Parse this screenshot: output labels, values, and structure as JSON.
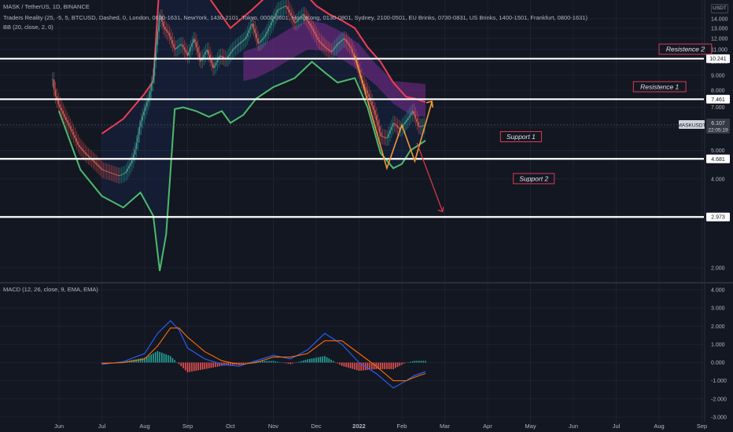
{
  "legend": {
    "symbol_line": "MASK / TetherUS, 1D, BINANCE",
    "indicator_line": "Traders Reality (25, -5, 5, BTCUSD, Dashed, 0, London, 0800-1631, NewYork, 1430-2101, Tokyo, 0000-0601, HongKong, 0130-0801, Sydney, 2100-0501, EU Brinks, 0730-0831, US Brinks, 1400-1501, Frankfurt, 0800-1631)",
    "bb_line": "BB (20, close, 2, 0)",
    "macd_line": "MACD (12, 26, close, 9, EMA, EMA)"
  },
  "currency_badge": "USDT",
  "colors": {
    "background": "#131722",
    "upper_band": "#ef3d53",
    "lower_band": "#4cbb6c",
    "cloud": "#7b2c8f",
    "level_line": "#ffffff",
    "annotation_box": "#d93c52",
    "arrow_orange": "#f29b38",
    "arrow_red": "#e5394f",
    "macd_line": "#2962ff",
    "signal_line": "#ff6d00",
    "hist_up": "#26a69a",
    "hist_down": "#ef5350"
  },
  "chart_data": [
    {
      "type": "line",
      "name": "price",
      "scale": "log",
      "x_ticks": [
        "Jun",
        "Jul",
        "Aug",
        "Sep",
        "Oct",
        "Nov",
        "Dec",
        "2022",
        "Feb",
        "Mar",
        "Apr",
        "May",
        "Jun",
        "Jul",
        "Aug",
        "Sep"
      ],
      "y_ticks": [
        "14.000",
        "13.000",
        "12.000",
        "11.000",
        "10.000",
        "9.000",
        "8.000",
        "7.000",
        "6.000",
        "5.000",
        "4.000",
        "3.000",
        "2.000"
      ],
      "ylim": [
        1.8,
        16
      ],
      "levels": [
        {
          "value": 10.241,
          "label": "10.241"
        },
        {
          "value": 7.461,
          "label": "7.461"
        },
        {
          "value": 4.681,
          "label": "4.681"
        },
        {
          "value": 2.973,
          "label": "2.973"
        }
      ],
      "annotations": [
        {
          "text": "Resistence 2",
          "t": 14.0,
          "y": 11.0
        },
        {
          "text": "Resistence 1",
          "t": 13.4,
          "y": 8.2
        },
        {
          "text": "Support 1",
          "t": 10.3,
          "y": 5.55
        },
        {
          "text": "Support 2",
          "t": 10.6,
          "y": 4.0
        }
      ],
      "last_price": {
        "symbol": "MASKUSDT",
        "value": "6.107",
        "countdown": "22:05:19"
      },
      "close": {
        "t": [
          -0.15,
          -0.1,
          0.0,
          0.15,
          0.3,
          0.45,
          0.6,
          0.8,
          1.0,
          1.2,
          1.4,
          1.55,
          1.7,
          1.8,
          1.9,
          2.0,
          2.1,
          2.2,
          2.35,
          2.45,
          2.55,
          2.7,
          2.85,
          3.0,
          3.15,
          3.3,
          3.45,
          3.6,
          3.75,
          3.9,
          4.05,
          4.2,
          4.35,
          4.5,
          4.65,
          4.8,
          4.95,
          5.1,
          5.3,
          5.5,
          5.7,
          5.9,
          6.05,
          6.2,
          6.35,
          6.5,
          6.65,
          6.8,
          6.95,
          7.05,
          7.2,
          7.35,
          7.5,
          7.65,
          7.8,
          7.95,
          8.1,
          8.25,
          8.4,
          8.55
        ],
        "values": [
          8.7,
          7.8,
          7.1,
          6.4,
          5.8,
          5.2,
          4.9,
          4.6,
          4.3,
          4.2,
          4.1,
          4.2,
          4.6,
          5.2,
          6.2,
          6.9,
          7.6,
          9.0,
          14.5,
          13.0,
          12.5,
          11.0,
          11.5,
          10.5,
          12.0,
          10.0,
          11.0,
          9.5,
          10.5,
          10.2,
          11.0,
          11.5,
          12.0,
          13.5,
          11.5,
          12.2,
          13.5,
          15.0,
          15.5,
          13.5,
          14.5,
          13.0,
          11.8,
          11.2,
          10.8,
          11.5,
          12.0,
          11.2,
          9.8,
          8.7,
          7.8,
          6.8,
          5.6,
          5.5,
          6.2,
          5.9,
          6.3,
          6.8,
          6.0,
          6.107
        ]
      },
      "bb_upper": {
        "t": [
          1.0,
          1.5,
          2.0,
          2.2,
          2.35,
          2.6,
          3.0,
          3.5,
          4.0,
          4.5,
          5.0,
          5.5,
          6.0,
          6.3,
          6.6,
          6.9,
          7.2,
          7.5,
          7.8,
          8.1,
          8.3,
          8.55
        ],
        "values": [
          5.7,
          6.4,
          7.8,
          8.6,
          19.0,
          20.0,
          18.5,
          16.5,
          13.0,
          15.0,
          17.5,
          18.5,
          15.5,
          14.5,
          13.8,
          13.0,
          11.2,
          10.0,
          8.5,
          7.6,
          7.5,
          7.3
        ]
      },
      "bb_lower": {
        "t": [
          0.0,
          0.5,
          1.0,
          1.5,
          1.9,
          2.2,
          2.35,
          2.5,
          2.7,
          2.9,
          3.2,
          3.5,
          3.8,
          4.0,
          4.3,
          4.6,
          5.0,
          5.5,
          5.9,
          6.2,
          6.5,
          6.9,
          7.2,
          7.5,
          7.8,
          8.0,
          8.2,
          8.55
        ],
        "values": [
          6.8,
          4.3,
          3.5,
          3.2,
          3.6,
          3.0,
          1.95,
          2.6,
          6.9,
          7.0,
          6.8,
          6.5,
          6.8,
          6.2,
          6.6,
          7.5,
          8.2,
          8.8,
          10.0,
          9.2,
          8.5,
          8.8,
          7.0,
          4.9,
          4.35,
          4.5,
          5.0,
          5.4
        ]
      },
      "cloud_upper": {
        "t": [
          4.3,
          4.6,
          5.0,
          5.4,
          5.8,
          6.2,
          6.6,
          7.0,
          7.4,
          7.8,
          8.2,
          8.55
        ],
        "values": [
          10.8,
          11.2,
          12.0,
          13.0,
          13.8,
          13.5,
          12.6,
          11.5,
          9.8,
          8.6,
          8.5,
          8.4
        ]
      },
      "cloud_lower": {
        "t": [
          4.3,
          4.6,
          5.0,
          5.4,
          5.8,
          6.2,
          6.6,
          7.0,
          7.4,
          7.8,
          8.2,
          8.55
        ],
        "values": [
          8.6,
          8.8,
          9.4,
          10.2,
          11.0,
          10.9,
          10.2,
          9.3,
          8.3,
          7.2,
          6.6,
          6.5
        ]
      }
    },
    {
      "type": "line",
      "name": "macd",
      "y_ticks": [
        "4.000",
        "3.000",
        "2.000",
        "1.000",
        "0.000",
        "-1.000",
        "-2.000",
        "-3.000"
      ],
      "ylim": [
        -3.3,
        4.3
      ],
      "macd": {
        "t": [
          1.0,
          1.5,
          2.0,
          2.3,
          2.6,
          2.8,
          3.0,
          3.4,
          3.8,
          4.2,
          4.6,
          5.0,
          5.4,
          5.8,
          6.2,
          6.6,
          7.0,
          7.4,
          7.8,
          8.1,
          8.3,
          8.55
        ],
        "values": [
          -0.1,
          0.05,
          0.5,
          1.6,
          2.3,
          1.8,
          0.8,
          0.2,
          -0.1,
          -0.2,
          0.1,
          0.4,
          0.2,
          0.7,
          1.6,
          1.0,
          0.0,
          -0.6,
          -1.4,
          -1.0,
          -0.7,
          -0.5
        ]
      },
      "signal": {
        "t": [
          1.0,
          1.5,
          2.0,
          2.3,
          2.6,
          2.8,
          3.0,
          3.4,
          3.8,
          4.2,
          4.6,
          5.0,
          5.4,
          5.8,
          6.2,
          6.6,
          7.0,
          7.4,
          7.8,
          8.1,
          8.3,
          8.55
        ],
        "values": [
          -0.05,
          0.0,
          0.2,
          0.9,
          1.9,
          1.9,
          1.4,
          0.6,
          0.1,
          -0.1,
          0.0,
          0.3,
          0.3,
          0.5,
          1.2,
          1.2,
          0.5,
          -0.2,
          -1.0,
          -1.0,
          -0.8,
          -0.6
        ]
      }
    }
  ]
}
